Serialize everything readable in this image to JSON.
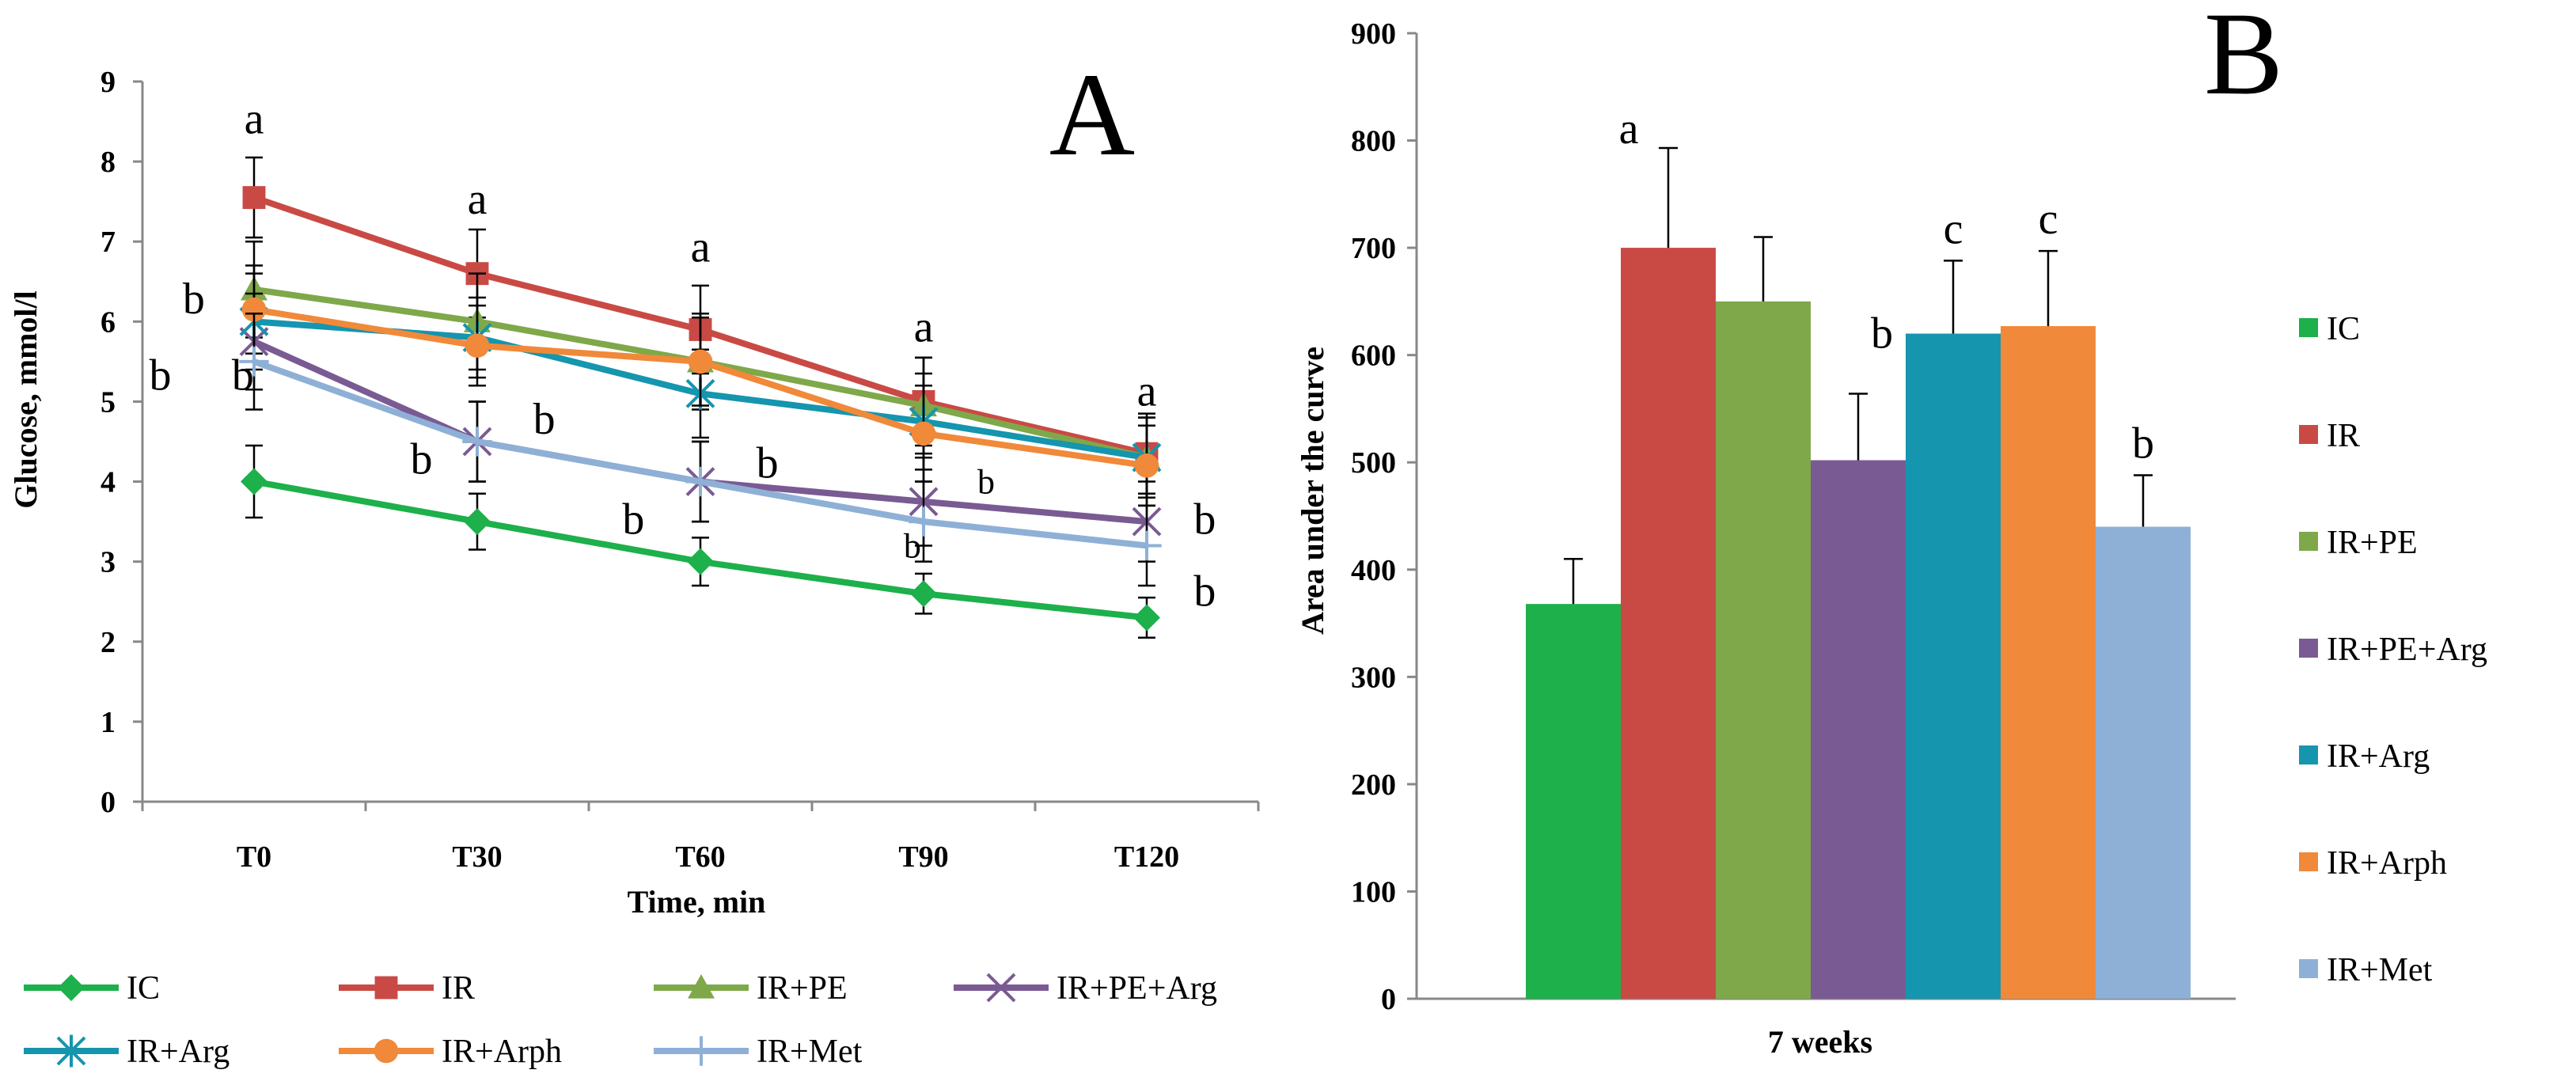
{
  "colors": {
    "IC": "#1db04b",
    "IR": "#c94a45",
    "IR+PE": "#7fa84a",
    "IR+PE+Arg": "#7a5a93",
    "IR+Arg": "#1595ae",
    "IR+Arph": "#f0893a",
    "IR+Met": "#8fb0d6"
  },
  "chart_data": [
    {
      "panel": "A",
      "type": "line",
      "xlabel": "Time, min",
      "ylabel": "Glucose, mmol/l",
      "categories": [
        "T0",
        "T30",
        "T60",
        "T90",
        "T120"
      ],
      "ylim": [
        0,
        9
      ],
      "yticks": [
        "0",
        "1",
        "2",
        "3",
        "4",
        "5",
        "6",
        "7",
        "8",
        "9"
      ],
      "grid": false,
      "legend_position": "bottom",
      "series": [
        {
          "name": "IC",
          "marker": "diamond",
          "values": [
            4.0,
            3.5,
            3.0,
            2.6,
            2.3
          ],
          "errors": [
            0.45,
            0.35,
            0.3,
            0.25,
            0.25
          ]
        },
        {
          "name": "IR",
          "marker": "square",
          "values": [
            7.55,
            6.6,
            5.9,
            5.0,
            4.35
          ],
          "errors": [
            0.5,
            0.55,
            0.55,
            0.55,
            0.5
          ]
        },
        {
          "name": "IR+PE",
          "marker": "triangle",
          "values": [
            6.4,
            6.0,
            5.5,
            4.95,
            4.3
          ],
          "errors": [
            0.6,
            0.6,
            0.6,
            0.6,
            0.5
          ]
        },
        {
          "name": "IR+PE+Arg",
          "marker": "x",
          "values": [
            5.75,
            4.5,
            4.0,
            3.75,
            3.5
          ],
          "errors": [
            0.6,
            0.5,
            0.5,
            0.55,
            0.5
          ]
        },
        {
          "name": "IR+Arg",
          "marker": "star",
          "values": [
            6.0,
            5.8,
            5.1,
            4.75,
            4.3
          ],
          "errors": [
            0.6,
            0.5,
            0.55,
            0.6,
            0.5
          ]
        },
        {
          "name": "IR+Arph",
          "marker": "circle",
          "values": [
            6.15,
            5.7,
            5.5,
            4.6,
            4.2
          ],
          "errors": [
            0.55,
            0.5,
            0.55,
            0.6,
            0.5
          ]
        },
        {
          "name": "IR+Met",
          "marker": "plus",
          "values": [
            5.5,
            4.5,
            4.0,
            3.5,
            3.2
          ],
          "errors": [
            0.6,
            0.5,
            0.5,
            0.5,
            0.5
          ]
        }
      ],
      "annotations": [
        {
          "text": "A",
          "kind": "panel"
        },
        {
          "text": "a",
          "x": "T0",
          "y": 8.35
        },
        {
          "text": "a",
          "x": "T30",
          "y": 7.35
        },
        {
          "text": "a",
          "x": "T60",
          "y": 6.75
        },
        {
          "text": "a",
          "x": "T90",
          "y": 5.75
        },
        {
          "text": "a",
          "x": "T120",
          "y": 4.95
        },
        {
          "text": "b",
          "x": "T0",
          "y": 6.1,
          "dx": -0.27
        },
        {
          "text": "b",
          "x": "T0",
          "y": 5.15,
          "dx": -0.42
        },
        {
          "text": "b",
          "x": "T0",
          "y": 5.15,
          "dx": -0.05
        },
        {
          "text": "b",
          "x": "T30",
          "y": 4.1,
          "dx": -0.25
        },
        {
          "text": "b",
          "x": "T30",
          "y": 4.6,
          "dx": 0.3
        },
        {
          "text": "b",
          "x": "T60",
          "y": 3.35,
          "dx": -0.3
        },
        {
          "text": "b",
          "x": "T60",
          "y": 4.05,
          "dx": 0.3
        },
        {
          "text": "b",
          "x": "T90",
          "y": 3.85,
          "dx": 0.28,
          "small": true
        },
        {
          "text": "b",
          "x": "T90",
          "y": 3.05,
          "dx": -0.05,
          "small": true
        },
        {
          "text": "b",
          "x": "T120",
          "y": 3.35,
          "dx": 0.26
        },
        {
          "text": "b",
          "x": "T120",
          "y": 2.45,
          "dx": 0.26
        }
      ]
    },
    {
      "panel": "B",
      "type": "bar",
      "xlabel": "7 weeks",
      "ylabel": "Area under the curve",
      "ylim": [
        0,
        900
      ],
      "yticks": [
        "0",
        "100",
        "200",
        "300",
        "400",
        "500",
        "600",
        "700",
        "800",
        "900"
      ],
      "grid": false,
      "legend_position": "right",
      "categories": [
        "IC",
        "IR",
        "IR+PE",
        "IR+PE+Arg",
        "IR+Arg",
        "IR+Arph",
        "IR+Met"
      ],
      "values": [
        368,
        700,
        650,
        502,
        620,
        627,
        440
      ],
      "errors": [
        42,
        93,
        60,
        62,
        68,
        70,
        48
      ],
      "labels": [
        "",
        "a",
        "",
        "b",
        "c",
        "c",
        "b"
      ],
      "annotations": [
        {
          "text": "B",
          "kind": "panel"
        }
      ]
    }
  ]
}
